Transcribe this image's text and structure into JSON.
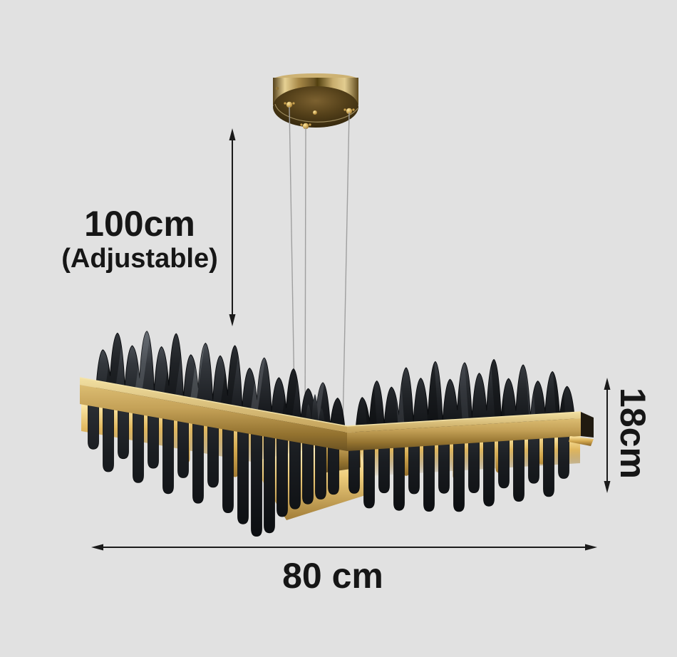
{
  "page": {
    "background_color": "#e1e1e1",
    "annotation_color": "#1a1a1a"
  },
  "annotations": {
    "suspension_height": {
      "value": "100cm",
      "qualifier": "(Adjustable)"
    },
    "fixture_height": {
      "value": "18cm"
    },
    "fixture_width": {
      "value": "80 cm"
    }
  },
  "product": {
    "description": "Black and brass wave-edge linear chandelier hung from a round ceiling canopy by three thin wires",
    "colors": {
      "brass": "#b5914c",
      "brass_light": "#ecd69a",
      "brass_dark": "#6e5424",
      "black_metal": "#1c1f23",
      "wire": "#9f9f9f",
      "glow": "#ffedb0",
      "background": "#e1e1e1",
      "annotation": "#1a1a1a"
    }
  }
}
